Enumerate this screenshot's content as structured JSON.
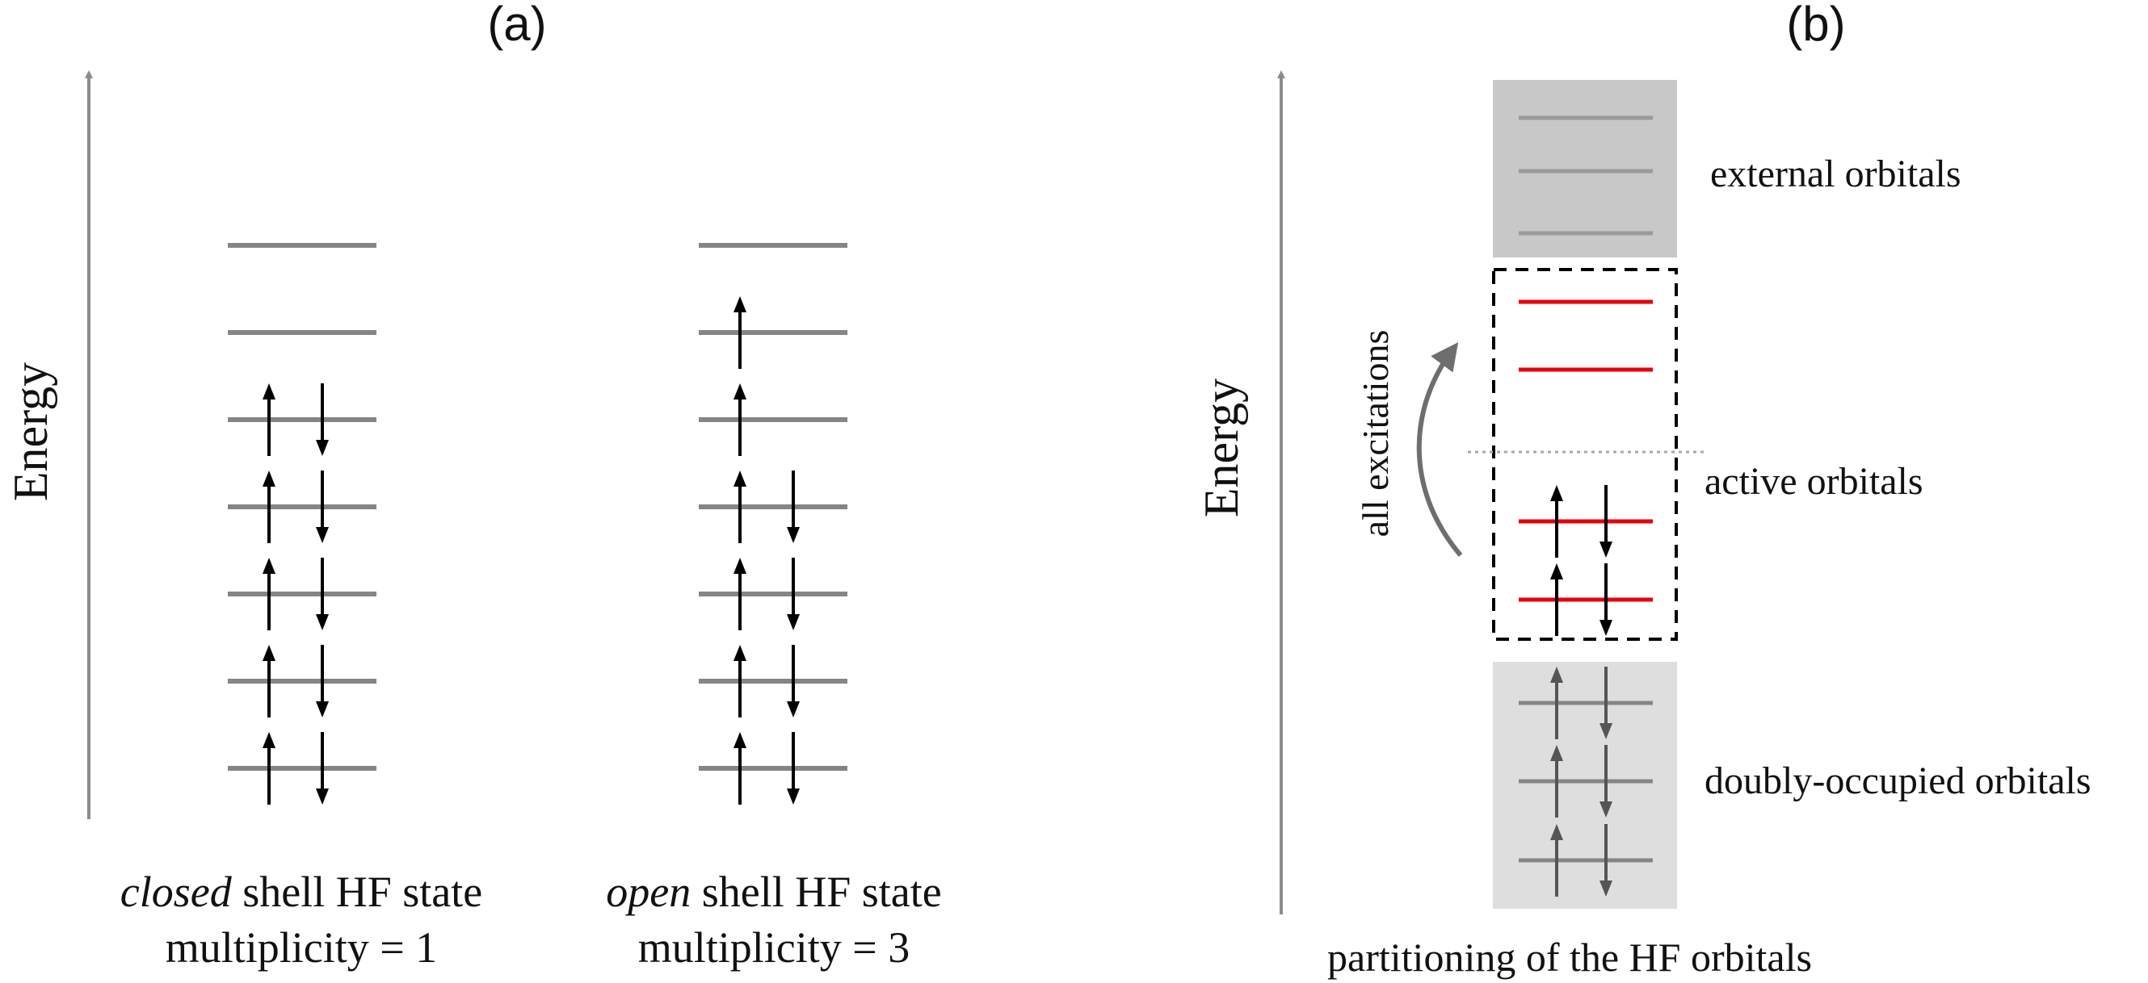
{
  "panels": {
    "a": {
      "label": "(a)",
      "energy_axis_label": "Energy",
      "closed_shell": {
        "caption_emph": "closed",
        "caption_rest": " shell HF state",
        "multiplicity": "multiplicity = 1",
        "levels_top_to_bottom": [
          "empty",
          "empty",
          "paired",
          "paired",
          "paired",
          "paired",
          "paired"
        ]
      },
      "open_shell": {
        "caption_emph": "open",
        "caption_rest": " shell HF state",
        "multiplicity": "multiplicity = 3",
        "levels_top_to_bottom": [
          "empty",
          "up",
          "up",
          "paired",
          "paired",
          "paired",
          "paired"
        ]
      }
    },
    "b": {
      "label": "(b)",
      "energy_axis_label": "Energy",
      "external_label": "external orbitals",
      "active_label": "active orbitals",
      "doubly_label": "doubly-occupied orbitals",
      "excitation_label": "all excitations",
      "caption": "partitioning of the HF orbitals",
      "external_levels": 3,
      "active_levels_top_to_bottom": [
        "empty",
        "empty",
        "paired",
        "paired"
      ],
      "doubly_levels": 3
    }
  },
  "colors": {
    "level_gray": "#858585",
    "axis_gray": "#8c8c8c",
    "spin_black": "#000000",
    "active_red": "#e8000b",
    "external_box": "#c8c8c8",
    "doubly_box": "#dedede",
    "doubly_spin": "#555555",
    "arrow_gray": "#6e6e6e"
  }
}
